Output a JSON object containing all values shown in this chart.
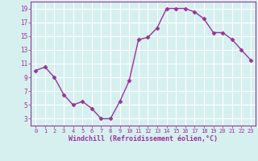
{
  "x": [
    0,
    1,
    2,
    3,
    4,
    5,
    6,
    7,
    8,
    9,
    10,
    11,
    12,
    13,
    14,
    15,
    16,
    17,
    18,
    19,
    20,
    21,
    22,
    23
  ],
  "y": [
    10.0,
    10.5,
    9.0,
    6.5,
    5.0,
    5.5,
    4.5,
    3.0,
    3.0,
    5.5,
    8.5,
    14.5,
    14.8,
    16.2,
    19.0,
    19.0,
    19.0,
    18.5,
    17.5,
    15.5,
    15.5,
    14.5,
    13.0,
    11.5
  ],
  "line_color": "#993399",
  "marker": "D",
  "marker_size": 2.5,
  "bg_color": "#d6f0f0",
  "grid_color": "#ffffff",
  "xlabel": "Windchill (Refroidissement éolien,°C)",
  "xlabel_color": "#993399",
  "tick_color": "#993399",
  "ylim": [
    2,
    20
  ],
  "xlim": [
    -0.5,
    23.5
  ],
  "yticks": [
    3,
    5,
    7,
    9,
    11,
    13,
    15,
    17,
    19
  ],
  "xticks": [
    0,
    1,
    2,
    3,
    4,
    5,
    6,
    7,
    8,
    9,
    10,
    11,
    12,
    13,
    14,
    15,
    16,
    17,
    18,
    19,
    20,
    21,
    22,
    23
  ],
  "xtick_labels": [
    "0",
    "1",
    "2",
    "3",
    "4",
    "5",
    "6",
    "7",
    "8",
    "9",
    "10",
    "11",
    "12",
    "13",
    "14",
    "15",
    "16",
    "17",
    "18",
    "19",
    "20",
    "21",
    "22",
    "23"
  ],
  "line_width": 1.0,
  "xlabel_fontsize": 6.0,
  "xtick_fontsize": 5.0,
  "ytick_fontsize": 5.5
}
